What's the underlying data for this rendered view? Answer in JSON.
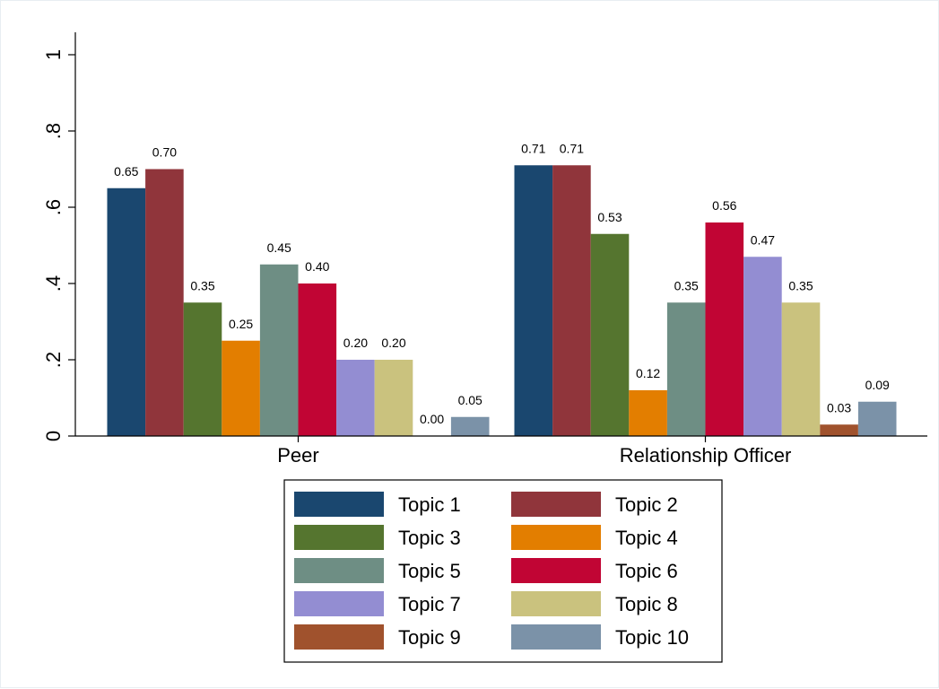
{
  "chart_data": {
    "type": "bar",
    "categories": [
      "Peer",
      "Relationship Officer"
    ],
    "ylim": [
      0,
      1
    ],
    "yticks": [
      0,
      0.2,
      0.4,
      0.6,
      0.8,
      1
    ],
    "ytick_labels": [
      "0",
      ".2",
      ".4",
      ".6",
      ".8",
      "1"
    ],
    "grid": false,
    "legend_position": "bottom",
    "series": [
      {
        "name": "Topic 1",
        "color": "#1a476f",
        "values": [
          0.65,
          0.71
        ],
        "labels": [
          "0.65",
          "0.71"
        ]
      },
      {
        "name": "Topic 2",
        "color": "#90353b",
        "values": [
          0.7,
          0.71
        ],
        "labels": [
          "0.70",
          "0.71"
        ]
      },
      {
        "name": "Topic 3",
        "color": "#55752f",
        "values": [
          0.35,
          0.53
        ],
        "labels": [
          "0.35",
          "0.53"
        ]
      },
      {
        "name": "Topic 4",
        "color": "#e37e00",
        "values": [
          0.25,
          0.12
        ],
        "labels": [
          "0.25",
          "0.12"
        ]
      },
      {
        "name": "Topic 5",
        "color": "#6e8e84",
        "values": [
          0.45,
          0.35
        ],
        "labels": [
          "0.45",
          "0.35"
        ]
      },
      {
        "name": "Topic 6",
        "color": "#c10534",
        "values": [
          0.4,
          0.56
        ],
        "labels": [
          "0.40",
          "0.56"
        ]
      },
      {
        "name": "Topic 7",
        "color": "#938dd2",
        "values": [
          0.2,
          0.47
        ],
        "labels": [
          "0.20",
          "0.47"
        ]
      },
      {
        "name": "Topic 8",
        "color": "#cac27e",
        "values": [
          0.2,
          0.35
        ],
        "labels": [
          "0.20",
          "0.35"
        ]
      },
      {
        "name": "Topic 9",
        "color": "#a0522d",
        "values": [
          0.0,
          0.03
        ],
        "labels": [
          "0.00",
          "0.03"
        ]
      },
      {
        "name": "Topic 10",
        "color": "#7b92a8",
        "values": [
          0.05,
          0.09
        ],
        "labels": [
          "0.05",
          "0.09"
        ]
      }
    ]
  }
}
